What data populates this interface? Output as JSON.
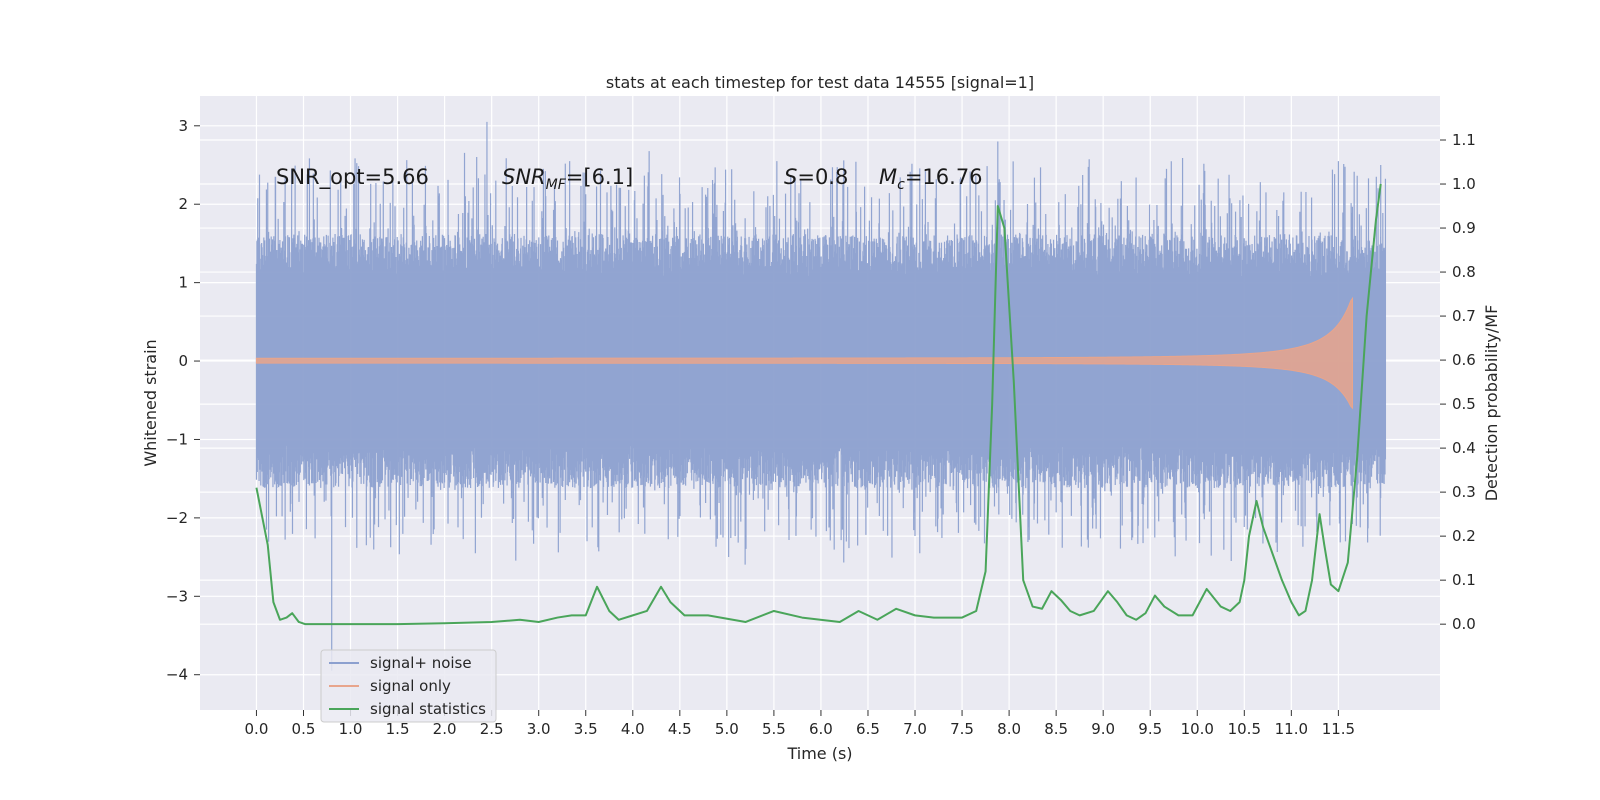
{
  "chart_data": {
    "type": "line",
    "title": "stats at each timestep for test data 14555 [signal=1]",
    "xlabel": "Time (s)",
    "ylabel_left": "Whitened strain",
    "ylabel_right": "Detection probability/MF",
    "xlim": [
      -0.6,
      12.58
    ],
    "ylim_left": [
      -4.45,
      3.38
    ],
    "ylim_right": [
      -0.195,
      1.2
    ],
    "xticks": [
      "0.0",
      "0.5",
      "1.0",
      "1.5",
      "2.0",
      "2.5",
      "3.0",
      "3.5",
      "4.0",
      "4.5",
      "5.0",
      "5.5",
      "6.0",
      "6.5",
      "7.0",
      "7.5",
      "8.0",
      "8.5",
      "9.0",
      "9.5",
      "10.0",
      "10.5",
      "11.0",
      "11.5"
    ],
    "yticks_left": [
      "3",
      "2",
      "1",
      "0",
      "−1",
      "−2",
      "−3",
      "−4"
    ],
    "yticks_right": [
      "1.1",
      "1.0",
      "0.9",
      "0.8",
      "0.7",
      "0.6",
      "0.5",
      "0.4",
      "0.3",
      "0.2",
      "0.1",
      "0.0"
    ],
    "grid": true,
    "legend_position": "lower-left",
    "annotations": {
      "snr_opt": "SNR_opt=5.66",
      "snr_mf_main": "SNR",
      "snr_mf_sub": "MF",
      "snr_mf_rest": "=[6.1]",
      "s_main": "S",
      "s_rest": "=0.8",
      "mc_main": "M",
      "mc_sub": "c",
      "mc_rest": "=16.76"
    },
    "series": [
      {
        "name": "signal+ noise",
        "color": "#8ca0cf",
        "axis": "left",
        "t_range": [
          0.0,
          12.0
        ],
        "typical_range": [
          -1.2,
          1.2
        ],
        "peaks": [
          [
            0.2,
            2.35
          ],
          [
            0.8,
            -3.95
          ],
          [
            2.45,
            3.05
          ],
          [
            3.05,
            2.45
          ],
          [
            7.88,
            2.8
          ],
          [
            11.5,
            2.55
          ],
          [
            11.95,
            2.5
          ]
        ]
      },
      {
        "name": "signal only",
        "color": "#e8a58c",
        "axis": "left",
        "t_range": [
          0.0,
          11.65
        ],
        "peak_amplitude": 0.8
      },
      {
        "name": "signal statistics",
        "color": "#4aa55a",
        "axis": "right",
        "x": [
          0.0,
          0.12,
          0.18,
          0.25,
          0.32,
          0.38,
          0.45,
          0.52,
          0.6,
          0.7,
          0.8,
          1.0,
          1.5,
          2.0,
          2.5,
          2.8,
          3.0,
          3.2,
          3.35,
          3.5,
          3.62,
          3.75,
          3.85,
          4.0,
          4.15,
          4.3,
          4.4,
          4.55,
          4.8,
          5.2,
          5.5,
          5.8,
          6.2,
          6.4,
          6.6,
          6.8,
          7.0,
          7.2,
          7.5,
          7.65,
          7.75,
          7.82,
          7.88,
          7.95,
          8.05,
          8.15,
          8.25,
          8.35,
          8.45,
          8.55,
          8.65,
          8.75,
          8.9,
          9.05,
          9.15,
          9.25,
          9.35,
          9.45,
          9.55,
          9.65,
          9.8,
          9.95,
          10.1,
          10.25,
          10.35,
          10.45,
          10.5,
          10.55,
          10.63,
          10.7,
          10.8,
          10.9,
          11.0,
          11.08,
          11.15,
          11.22,
          11.3,
          11.35,
          11.42,
          11.5,
          11.6,
          11.7,
          11.8,
          11.9,
          11.95
        ],
        "y": [
          0.31,
          0.18,
          0.05,
          0.01,
          0.015,
          0.025,
          0.005,
          0.0,
          0.0,
          0.0,
          0.0,
          0.0,
          0.0,
          0.002,
          0.005,
          0.01,
          0.005,
          0.015,
          0.02,
          0.02,
          0.085,
          0.03,
          0.01,
          0.02,
          0.03,
          0.085,
          0.05,
          0.02,
          0.02,
          0.005,
          0.03,
          0.015,
          0.005,
          0.03,
          0.01,
          0.035,
          0.02,
          0.015,
          0.015,
          0.03,
          0.12,
          0.5,
          0.95,
          0.9,
          0.55,
          0.1,
          0.04,
          0.035,
          0.075,
          0.055,
          0.03,
          0.02,
          0.03,
          0.075,
          0.05,
          0.02,
          0.01,
          0.025,
          0.065,
          0.04,
          0.02,
          0.02,
          0.08,
          0.04,
          0.03,
          0.05,
          0.1,
          0.2,
          0.28,
          0.22,
          0.16,
          0.1,
          0.05,
          0.02,
          0.03,
          0.1,
          0.25,
          0.18,
          0.09,
          0.075,
          0.14,
          0.38,
          0.7,
          0.92,
          1.0
        ]
      }
    ]
  }
}
